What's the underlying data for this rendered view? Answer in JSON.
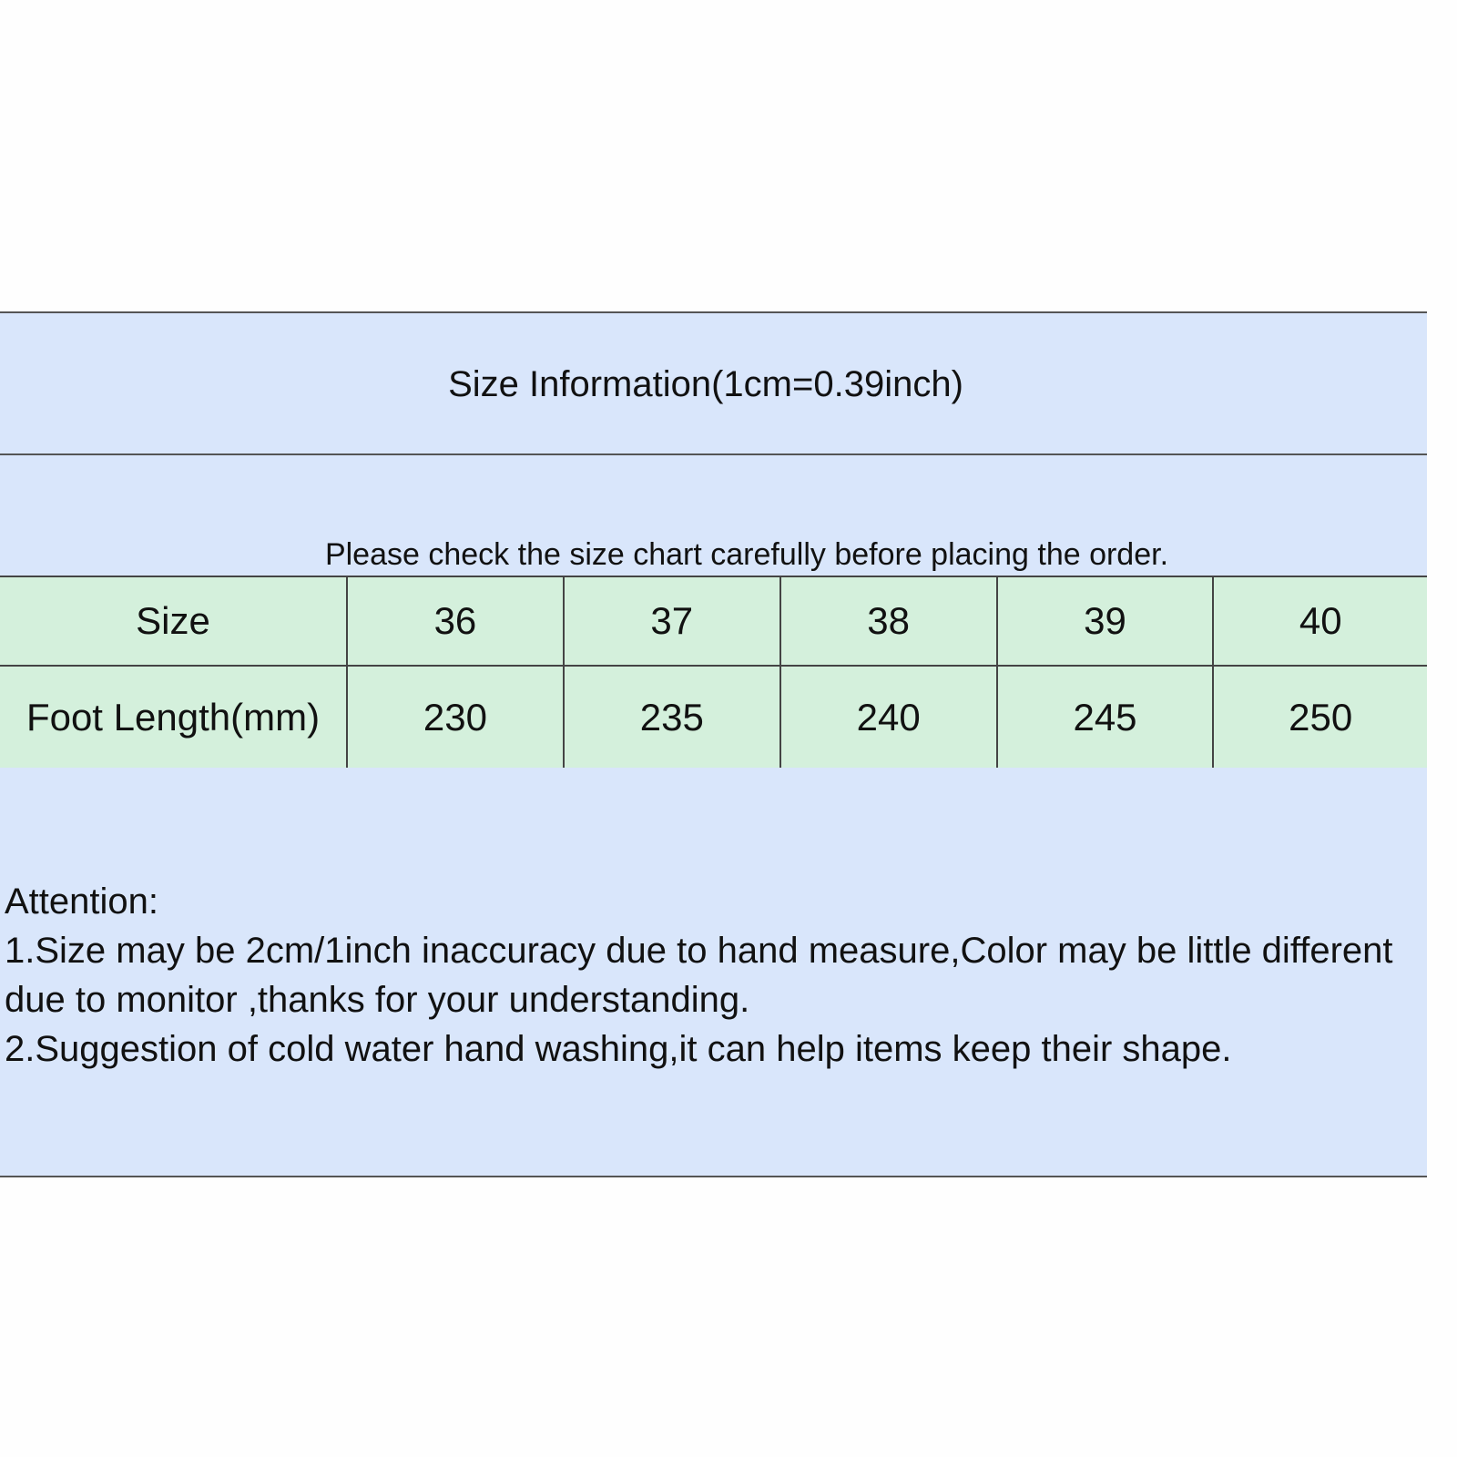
{
  "title": "Size Information(1cm=0.39inch)",
  "subtitle": "Please check the size chart carefully before placing the order.",
  "table": {
    "rows": [
      {
        "label": "Size",
        "values": [
          "36",
          "37",
          "38",
          "39",
          "40"
        ]
      },
      {
        "label": "Foot Length(mm)",
        "values": [
          "230",
          "235",
          "240",
          "245",
          "250"
        ]
      }
    ]
  },
  "notes": {
    "heading": "Attention:",
    "lines": [
      "1.Size may be 2cm/1inch inaccuracy due to hand measure,Color may be little different due to monitor ,thanks for your understanding.",
      "2.Suggestion of cold water hand washing,it can help items keep their shape."
    ]
  },
  "colors": {
    "header_bg": "#d9e6fb",
    "table_bg": "#d4f0dc",
    "border": "#444444"
  }
}
